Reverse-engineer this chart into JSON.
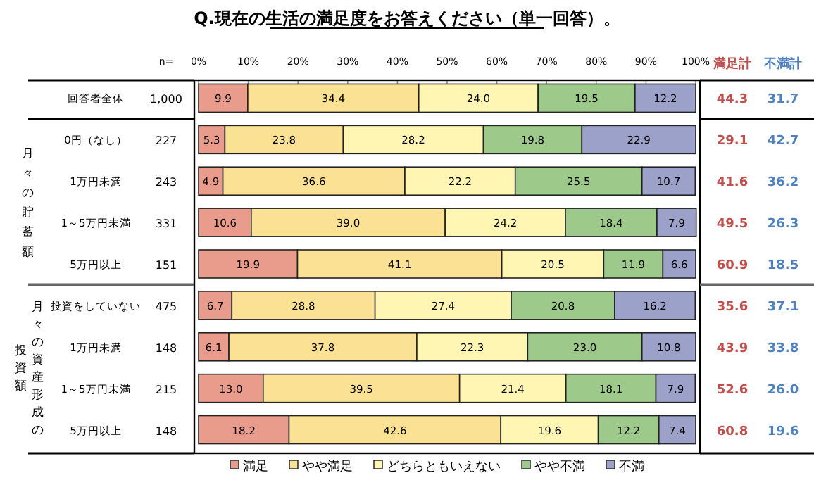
{
  "chart_data": {
    "type": "bar",
    "orientation": "horizontal",
    "stacked": true,
    "grid": false,
    "legend": "bottom",
    "title": "Q.現在の生活の満足度をお答えください（単一回答）。",
    "categories": [
      "回答者全体",
      "0円（なし）",
      "1万円未満",
      "1～5万円未満",
      "5万円以上",
      "投資をしていない",
      "1万円未満",
      "1～5万円未満",
      "5万円以上"
    ],
    "xlim": [
      0,
      100
    ],
    "xticks": [
      {
        "value": 0,
        "label": "0%"
      },
      {
        "value": 10,
        "label": "10%"
      },
      {
        "value": 20,
        "label": "20%"
      },
      {
        "value": 30,
        "label": "30%"
      },
      {
        "value": 40,
        "label": "40%"
      },
      {
        "value": 50,
        "label": "50%"
      },
      {
        "value": 60,
        "label": "60%"
      },
      {
        "value": 70,
        "label": "70%"
      },
      {
        "value": 80,
        "label": "80%"
      },
      {
        "value": 90,
        "label": "90%"
      },
      {
        "value": 100,
        "label": "100%"
      }
    ],
    "series": [
      {
        "name": "満足",
        "color": "#e99c8b",
        "values": [
          9.9,
          5.3,
          4.9,
          10.6,
          19.9,
          6.7,
          6.1,
          13.0,
          18.2
        ],
        "value_labels": [
          "9.9",
          "5.3",
          "4.9",
          "10.6",
          "19.9",
          "6.7",
          "6.1",
          "13.0",
          "18.2"
        ]
      },
      {
        "name": "やや満足",
        "color": "#fbe194",
        "values": [
          34.4,
          23.8,
          36.6,
          39.0,
          41.1,
          28.8,
          37.8,
          39.5,
          42.6
        ],
        "value_labels": [
          "34.4",
          "23.8",
          "36.6",
          "39.0",
          "41.1",
          "28.8",
          "37.8",
          "39.5",
          "42.6"
        ]
      },
      {
        "name": "どちらともいえない",
        "color": "#fff6b3",
        "values": [
          24.0,
          28.2,
          22.2,
          24.2,
          20.5,
          27.4,
          22.3,
          21.4,
          19.6
        ],
        "value_labels": [
          "24.0",
          "28.2",
          "22.2",
          "24.2",
          "20.5",
          "27.4",
          "22.3",
          "21.4",
          "19.6"
        ]
      },
      {
        "name": "やや不満",
        "color": "#9dc98b",
        "values": [
          19.5,
          19.8,
          25.5,
          18.4,
          11.9,
          20.8,
          23.0,
          18.1,
          12.2
        ],
        "value_labels": [
          "19.5",
          "19.8",
          "25.5",
          "18.4",
          "11.9",
          "20.8",
          "23.0",
          "18.1",
          "12.2"
        ]
      },
      {
        "name": "不満",
        "color": "#9ba1c9",
        "values": [
          12.2,
          22.9,
          10.7,
          7.9,
          6.6,
          16.2,
          10.8,
          7.9,
          7.4
        ],
        "value_labels": [
          "12.2",
          "22.9",
          "10.7",
          "7.9",
          "6.6",
          "16.2",
          "10.8",
          "7.9",
          "7.4"
        ]
      }
    ],
    "annotations": [
      "月々の貯蓄額",
      "月々の資産形成の",
      "投資額",
      "n=",
      "1,000",
      "227",
      "243",
      "331",
      "151",
      "475",
      "148",
      "215",
      "148",
      "満足計",
      "44.3",
      "29.1",
      "41.6",
      "49.5",
      "60.9",
      "35.6",
      "43.9",
      "52.6",
      "60.8",
      "不満計",
      "31.7",
      "42.7",
      "36.2",
      "26.3",
      "18.5",
      "37.1",
      "33.8",
      "26.0",
      "19.6"
    ]
  }
}
